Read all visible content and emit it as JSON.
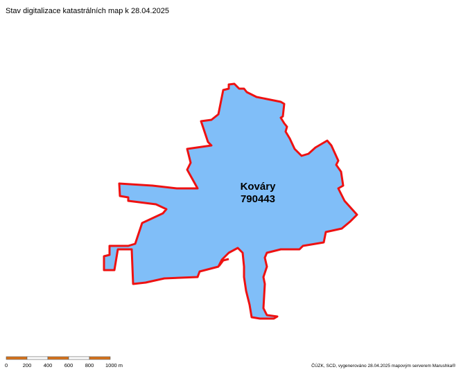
{
  "header": {
    "title": "Stav digitalizace katastrálních map k 28.04.2025"
  },
  "area": {
    "name": "Kováry",
    "code": "790443"
  },
  "scale": {
    "labels": [
      "0",
      "200",
      "400",
      "600",
      "800",
      "1000 m"
    ]
  },
  "footer": {
    "credit": "ČÚZK, SCD, vygenerováno 28.04.2025 mapovým serverem Marushka®"
  }
}
